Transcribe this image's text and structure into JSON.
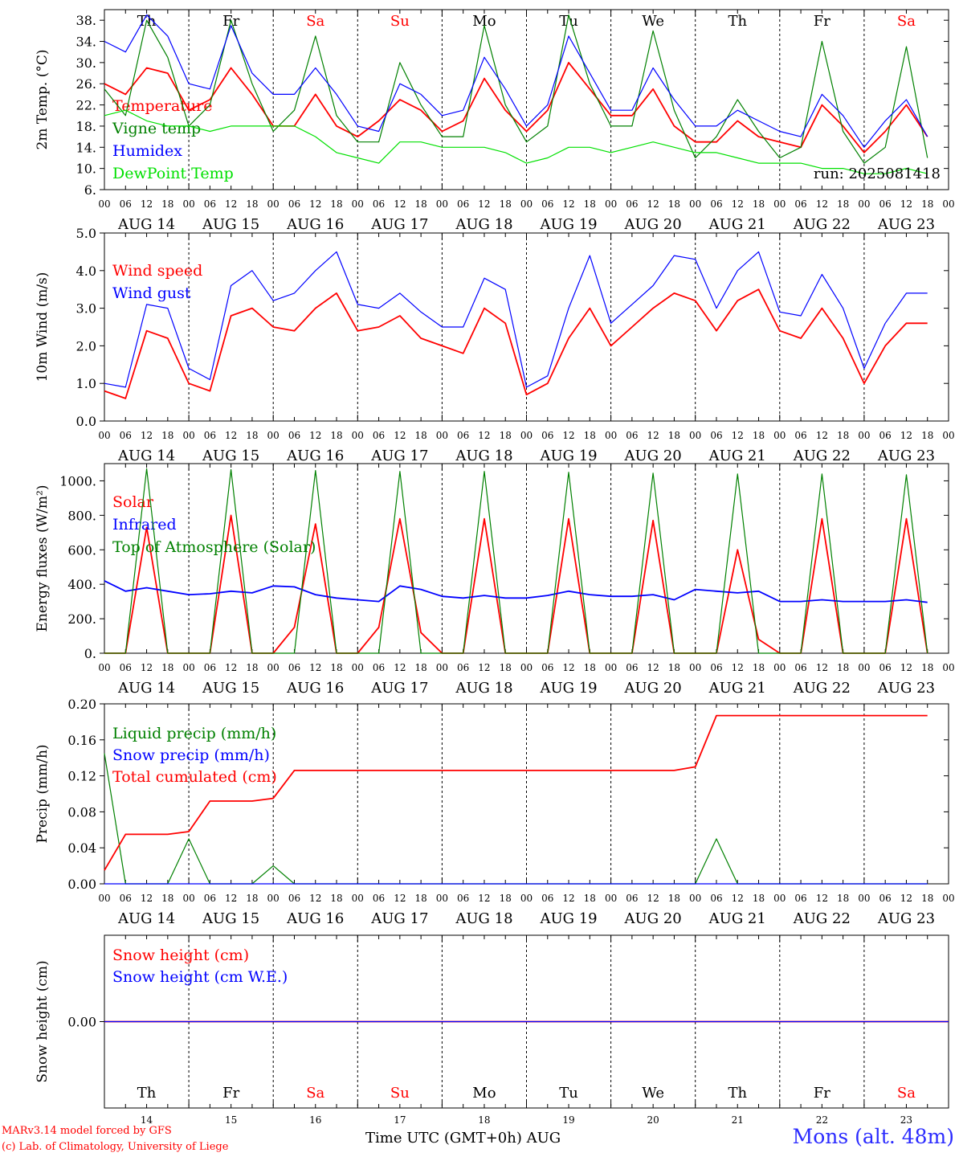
{
  "chart_data": [
    {
      "type": "line",
      "ylabel": "2m Temp. (°C)",
      "yticks": [
        "6.",
        "10.",
        "14.",
        "18.",
        "22.",
        "26.",
        "30.",
        "34.",
        "38."
      ],
      "ylim": [
        6,
        40
      ],
      "day_names": [
        "Th",
        "Fr",
        "Sa",
        "Su",
        "Mo",
        "Tu",
        "We",
        "Th",
        "Fr",
        "Sa"
      ],
      "annotation": "run: 2025081418",
      "x_hours": [
        0,
        6,
        12,
        18,
        24,
        30,
        36,
        42,
        48,
        54,
        60,
        66,
        72,
        78,
        84,
        90,
        96,
        102,
        108,
        114,
        120,
        126,
        132,
        138,
        144,
        150,
        156,
        162,
        168,
        174,
        180,
        186,
        192,
        198,
        204,
        210,
        216,
        222,
        228,
        234
      ],
      "series": [
        {
          "name": "Temperature",
          "color": "#ff0000",
          "values": [
            26,
            24,
            29,
            28,
            21,
            23,
            29,
            24,
            18,
            18,
            24,
            18,
            16,
            19,
            23,
            21,
            17,
            19,
            27,
            21,
            17,
            21,
            30,
            25,
            20,
            20,
            25,
            18,
            15,
            15,
            19,
            16,
            15,
            14,
            22,
            18,
            13,
            17,
            22,
            16
          ]
        },
        {
          "name": "Vigne temp",
          "color": "#008000",
          "values": [
            25,
            20,
            38,
            31,
            18,
            22,
            38,
            26,
            17,
            21,
            35,
            20,
            15,
            15,
            30,
            22,
            16,
            16,
            37,
            22,
            15,
            18,
            39,
            26,
            18,
            18,
            36,
            21,
            12,
            16,
            23,
            17,
            12,
            14,
            34,
            17,
            11,
            14,
            33,
            12
          ]
        },
        {
          "name": "Humidex",
          "color": "#0000ff",
          "values": [
            34,
            32,
            39,
            35,
            26,
            25,
            37,
            28,
            24,
            24,
            29,
            24,
            18,
            17,
            26,
            24,
            20,
            21,
            31,
            25,
            18,
            22,
            35,
            28,
            21,
            21,
            29,
            23,
            18,
            18,
            21,
            19,
            17,
            16,
            24,
            20,
            14,
            19,
            23,
            16
          ]
        },
        {
          "name": "DewPoint Temp",
          "color": "#00e000",
          "values": [
            20,
            21,
            19,
            18,
            18,
            17,
            18,
            18,
            18,
            18,
            16,
            13,
            12,
            11,
            15,
            15,
            14,
            14,
            14,
            13,
            11,
            12,
            14,
            14,
            13,
            14,
            15,
            14,
            13,
            13,
            12,
            11,
            11,
            11,
            10,
            10,
            9,
            9,
            10,
            9
          ]
        }
      ]
    },
    {
      "type": "line",
      "ylabel": "10m Wind (m/s)",
      "yticks": [
        "0.0",
        "1.0",
        "2.0",
        "3.0",
        "4.0",
        "5.0"
      ],
      "ylim": [
        0,
        5
      ],
      "x_hours": [
        0,
        6,
        12,
        18,
        24,
        30,
        36,
        42,
        48,
        54,
        60,
        66,
        72,
        78,
        84,
        90,
        96,
        102,
        108,
        114,
        120,
        126,
        132,
        138,
        144,
        150,
        156,
        162,
        168,
        174,
        180,
        186,
        192,
        198,
        204,
        210,
        216,
        222,
        228,
        234
      ],
      "series": [
        {
          "name": "Wind speed",
          "color": "#ff0000",
          "values": [
            0.8,
            0.6,
            2.4,
            2.2,
            1.0,
            0.8,
            2.8,
            3.0,
            2.5,
            2.4,
            3.0,
            3.4,
            2.4,
            2.5,
            2.8,
            2.2,
            2.0,
            1.8,
            3.0,
            2.6,
            0.7,
            1.0,
            2.2,
            3.0,
            2.0,
            2.5,
            3.0,
            3.4,
            3.2,
            2.4,
            3.2,
            3.5,
            2.4,
            2.2,
            3.0,
            2.2,
            1.0,
            2.0,
            2.6,
            2.6
          ]
        },
        {
          "name": "Wind gust",
          "color": "#0000ff",
          "values": [
            1.0,
            0.9,
            3.1,
            3.0,
            1.4,
            1.1,
            3.6,
            4.0,
            3.2,
            3.4,
            4.0,
            4.5,
            3.1,
            3.0,
            3.4,
            2.9,
            2.5,
            2.5,
            3.8,
            3.5,
            0.9,
            1.2,
            3.0,
            4.4,
            2.6,
            3.1,
            3.6,
            4.4,
            4.3,
            3.0,
            4.0,
            4.5,
            2.9,
            2.8,
            3.9,
            3.0,
            1.4,
            2.6,
            3.4,
            3.4
          ]
        }
      ]
    },
    {
      "type": "line",
      "ylabel": "Energy fluxes (W/m²)",
      "yticks": [
        "0.",
        "200.",
        "400.",
        "600.",
        "800.",
        "1000."
      ],
      "ylim": [
        0,
        1100
      ],
      "x_hours": [
        0,
        6,
        12,
        18,
        24,
        30,
        36,
        42,
        48,
        54,
        60,
        66,
        72,
        78,
        84,
        90,
        96,
        102,
        108,
        114,
        120,
        126,
        132,
        138,
        144,
        150,
        156,
        162,
        168,
        174,
        180,
        186,
        192,
        198,
        204,
        210,
        216,
        222,
        228,
        234
      ],
      "series": [
        {
          "name": "Solar",
          "color": "#ff0000",
          "values": [
            0,
            0,
            730,
            0,
            0,
            0,
            800,
            0,
            0,
            150,
            750,
            0,
            0,
            150,
            780,
            120,
            0,
            0,
            780,
            0,
            0,
            0,
            780,
            0,
            0,
            0,
            770,
            0,
            0,
            0,
            600,
            80,
            0,
            0,
            780,
            0,
            0,
            0,
            780,
            0
          ]
        },
        {
          "name": "Infrared",
          "color": "#0000ff",
          "values": [
            420,
            360,
            380,
            360,
            340,
            345,
            360,
            350,
            390,
            385,
            340,
            320,
            310,
            300,
            390,
            370,
            330,
            320,
            335,
            320,
            320,
            335,
            360,
            340,
            330,
            330,
            340,
            310,
            370,
            360,
            350,
            360,
            300,
            300,
            310,
            300,
            300,
            300,
            310,
            295
          ]
        },
        {
          "name": "Top of Atmosphere (Solar)",
          "color": "#008000",
          "values": [
            0,
            0,
            1070,
            0,
            0,
            0,
            1065,
            0,
            0,
            0,
            1060,
            0,
            0,
            0,
            1055,
            0,
            0,
            0,
            1055,
            0,
            0,
            0,
            1050,
            0,
            0,
            0,
            1045,
            0,
            0,
            0,
            1040,
            0,
            0,
            0,
            1040,
            0,
            0,
            0,
            1035,
            0
          ]
        }
      ]
    },
    {
      "type": "line",
      "ylabel": "Precip (mm/h)",
      "yticks": [
        "0.00",
        "0.04",
        "0.08",
        "0.12",
        "0.16",
        "0.20"
      ],
      "ylim": [
        0,
        0.2
      ],
      "x_hours": [
        0,
        6,
        12,
        18,
        24,
        30,
        36,
        42,
        48,
        54,
        60,
        66,
        72,
        78,
        84,
        90,
        96,
        102,
        108,
        114,
        120,
        126,
        132,
        138,
        144,
        150,
        156,
        162,
        168,
        174,
        180,
        186,
        192,
        198,
        204,
        210,
        216,
        222,
        228,
        234
      ],
      "series": [
        {
          "name": "Liquid precip (mm/h)",
          "color": "#008000",
          "values": [
            0.145,
            0,
            0,
            0,
            0.05,
            0,
            0,
            0,
            0.02,
            0,
            0,
            0,
            0,
            0,
            0,
            0,
            0,
            0,
            0,
            0,
            0,
            0,
            0,
            0,
            0,
            0,
            0,
            0,
            0,
            0.05,
            0,
            0,
            0,
            0,
            0,
            0,
            0,
            0,
            0,
            0
          ]
        },
        {
          "name": "Snow precip (mm/h)",
          "color": "#0000ff",
          "values": [
            0,
            0,
            0,
            0,
            0,
            0,
            0,
            0,
            0,
            0,
            0,
            0,
            0,
            0,
            0,
            0,
            0,
            0,
            0,
            0,
            0,
            0,
            0,
            0,
            0,
            0,
            0,
            0,
            0,
            0,
            0,
            0,
            0,
            0,
            0,
            0,
            0,
            0,
            0,
            0
          ]
        },
        {
          "name": "Total cumulated (cm)",
          "color": "#ff0000",
          "values": [
            0.015,
            0.055,
            0.055,
            0.055,
            0.058,
            0.092,
            0.092,
            0.092,
            0.095,
            0.126,
            0.126,
            0.126,
            0.126,
            0.126,
            0.126,
            0.126,
            0.126,
            0.126,
            0.126,
            0.126,
            0.126,
            0.126,
            0.126,
            0.126,
            0.126,
            0.126,
            0.126,
            0.126,
            0.13,
            0.187,
            0.187,
            0.187,
            0.187,
            0.187,
            0.187,
            0.187,
            0.187,
            0.187,
            0.187,
            0.187
          ]
        }
      ]
    },
    {
      "type": "line",
      "ylabel": "Snow height (cm)",
      "yticks": [
        "0.00"
      ],
      "x_hours": [
        0,
        240
      ],
      "series": [
        {
          "name": "Snow height (cm)",
          "color": "#ff0000",
          "values": [
            0,
            0
          ]
        },
        {
          "name": "Snow height (cm W.E.)",
          "color": "#0000ff",
          "values": [
            0,
            0
          ]
        }
      ]
    }
  ],
  "x_axis": {
    "hour_ticks": [
      "00",
      "06",
      "12",
      "18"
    ],
    "dates": [
      "AUG 14",
      "AUG 15",
      "AUG 16",
      "AUG 17",
      "AUG 18",
      "AUG 19",
      "AUG 20",
      "AUG 21",
      "AUG 22",
      "AUG 23"
    ],
    "day_numbers": [
      "14",
      "15",
      "16",
      "17",
      "18",
      "19",
      "20",
      "21",
      "22",
      "23"
    ],
    "final_tick": "00"
  },
  "weekend_color": "#ff0000",
  "weekend_days": [
    2,
    3,
    9
  ],
  "xtitle": "Time UTC (GMT+0h)",
  "month": "AUG",
  "credits": [
    "MARv3.14 model forced by GFS",
    "(c) Lab. of Climatology, University of Liege"
  ],
  "station": "Mons (alt. 48m)"
}
